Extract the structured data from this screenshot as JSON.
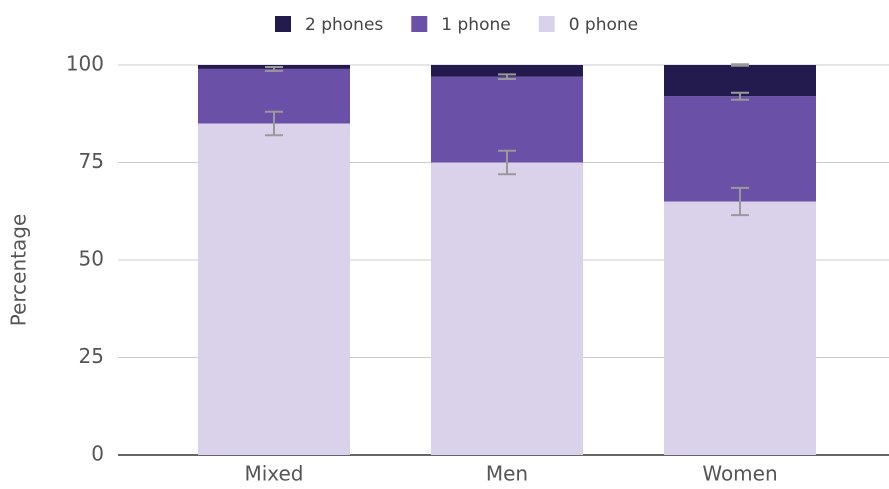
{
  "chart_data": {
    "type": "stacked_bar",
    "categories": [
      "Mixed",
      "Men",
      "Women"
    ],
    "series": [
      {
        "name": "2 phones",
        "color": "#231a4e",
        "values": [
          1,
          3,
          8
        ],
        "errors": [
          null,
          null,
          0.2
        ]
      },
      {
        "name": "1 phone",
        "color": "#6a50a7",
        "values": [
          14,
          22,
          27
        ],
        "errors": [
          0.5,
          0.6,
          0.9
        ]
      },
      {
        "name": "0 phone",
        "color": "#dad2eb",
        "values": [
          85,
          75,
          65
        ],
        "errors": [
          3,
          3,
          3.5
        ]
      }
    ],
    "ylabel": "Percentage",
    "ylim": [
      0,
      100
    ],
    "yticks": [
      0,
      25,
      50,
      75,
      100
    ],
    "grid": true,
    "legend": "top"
  }
}
